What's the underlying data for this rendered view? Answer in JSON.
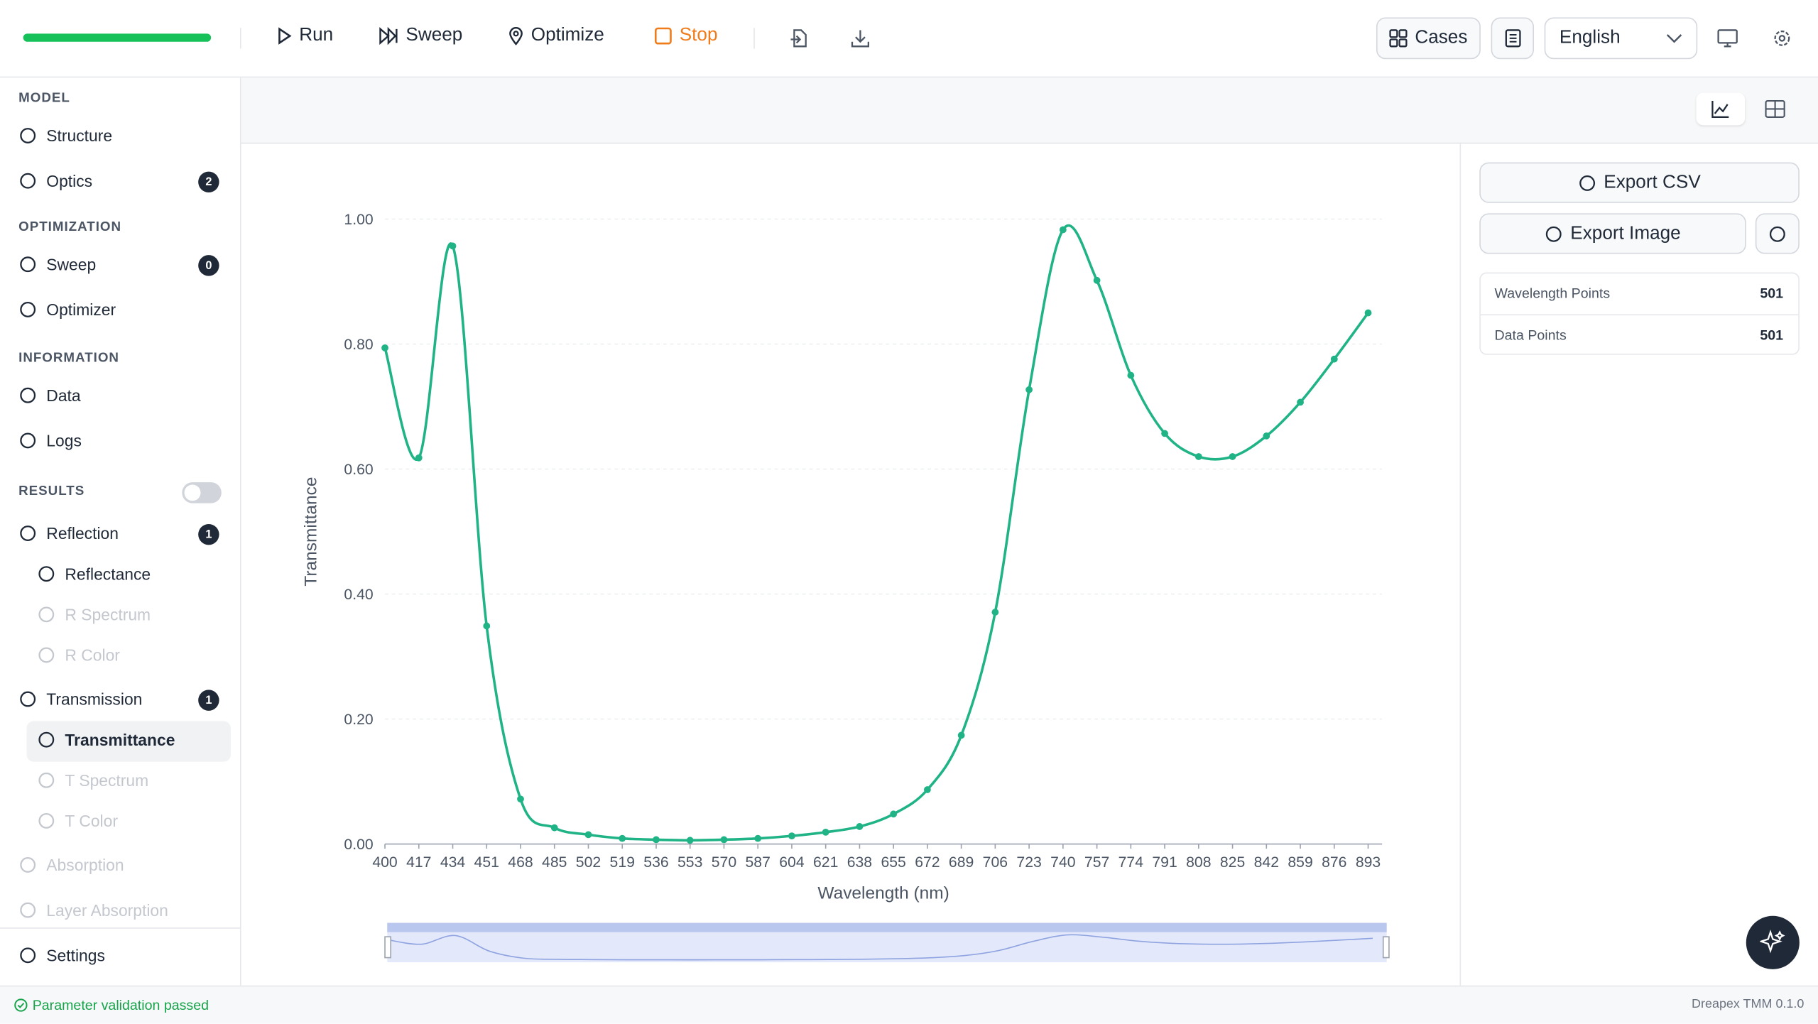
{
  "toolbar": {
    "actions": [
      "Run",
      "Sweep",
      "Optimize",
      "Stop"
    ],
    "cases": "Cases",
    "language": "English"
  },
  "sidebar": {
    "sections": [
      {
        "title": "MODEL",
        "items": [
          {
            "label": "Structure"
          },
          {
            "label": "Optics",
            "badge": 2
          }
        ]
      },
      {
        "title": "OPTIMIZATION",
        "items": [
          {
            "label": "Sweep",
            "badge": 0
          },
          {
            "label": "Optimizer"
          }
        ]
      },
      {
        "title": "INFORMATION",
        "items": [
          {
            "label": "Data"
          },
          {
            "label": "Logs"
          }
        ]
      },
      {
        "title": "RESULTS",
        "items": [
          {
            "label": "Reflection",
            "badge": 1,
            "children": [
              {
                "label": "Reflectance"
              },
              {
                "label": "R Spectrum",
                "disabled": true
              },
              {
                "label": "R Color",
                "disabled": true
              }
            ]
          },
          {
            "label": "Transmission",
            "badge": 1,
            "children": [
              {
                "label": "Transmittance",
                "active": true
              },
              {
                "label": "T Spectrum",
                "disabled": true
              },
              {
                "label": "T Color",
                "disabled": true
              }
            ]
          },
          {
            "label": "Absorption",
            "disabled": true
          },
          {
            "label": "Layer Absorption",
            "disabled": true
          }
        ]
      }
    ],
    "footer": "Settings"
  },
  "panel": {
    "buttons": [
      "Export CSV",
      "Export Image"
    ],
    "stats": [
      {
        "label": "Wavelength Points",
        "value": "501"
      },
      {
        "label": "Data Points",
        "value": "501"
      }
    ]
  },
  "status": {
    "message": "Parameter validation passed",
    "version": "Dreapex TMM 0.1.0"
  },
  "chart_data": {
    "type": "line",
    "x_label": "Wavelength (nm)",
    "y_label": "Transmittance",
    "color": "#1fb386",
    "x": [
      400,
      417,
      434,
      451,
      468,
      485,
      502,
      519,
      536,
      553,
      570,
      587,
      604,
      621,
      638,
      655,
      672,
      689,
      706,
      723,
      740,
      757,
      774,
      791,
      808,
      825,
      842,
      859,
      876,
      893
    ],
    "values": [
      0.794,
      0.618,
      0.957,
      0.349,
      0.072,
      0.026,
      0.015,
      0.009,
      0.007,
      0.006,
      0.007,
      0.009,
      0.013,
      0.019,
      0.028,
      0.048,
      0.087,
      0.174,
      0.371,
      0.727,
      0.983,
      0.902,
      0.75,
      0.657,
      0.62,
      0.62,
      0.653,
      0.707,
      0.776,
      0.85
    ],
    "xlim": [
      400,
      900
    ],
    "xticks": [
      400,
      417,
      434,
      451,
      468,
      485,
      502,
      519,
      536,
      553,
      570,
      587,
      604,
      621,
      638,
      655,
      672,
      689,
      706,
      723,
      740,
      757,
      774,
      791,
      808,
      825,
      842,
      859,
      876,
      893
    ],
    "ylim": [
      0,
      1
    ],
    "yticks": [
      {
        "value": 0,
        "label": "0.00"
      },
      {
        "value": 0.2,
        "label": "0.20"
      },
      {
        "value": 0.4,
        "label": "0.40"
      },
      {
        "value": 0.6,
        "label": "0.60"
      },
      {
        "value": 0.8,
        "label": "0.80"
      },
      {
        "value": 1,
        "label": "1.00"
      }
    ],
    "grid": true
  }
}
